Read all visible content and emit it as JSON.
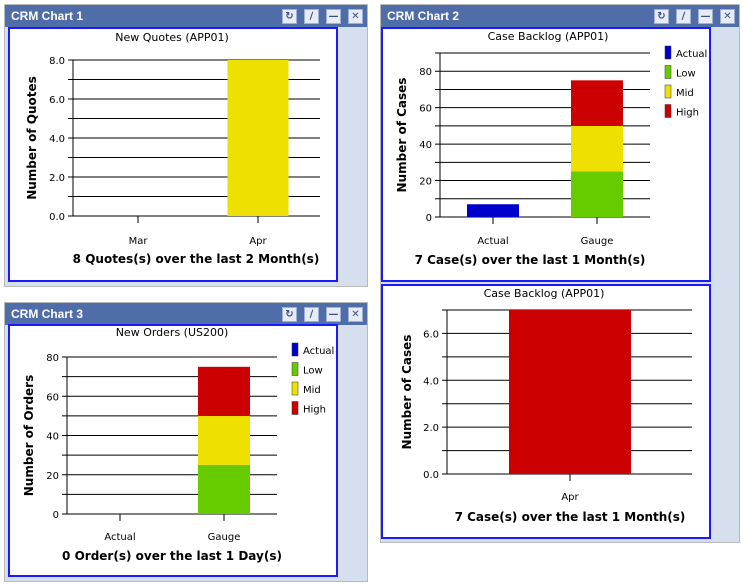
{
  "panels": [
    {
      "title": "CRM Chart 1"
    },
    {
      "title": "CRM Chart 2"
    },
    {
      "title": "CRM Chart 3"
    }
  ],
  "window_buttons": {
    "refresh": "refresh-icon",
    "edit": "edit-icon",
    "minimize": "minimize-icon",
    "close": "close-icon"
  },
  "colors": {
    "Actual": "#0000cc",
    "Low": "#66cc00",
    "Mid": "#eee000",
    "High": "#cc0000",
    "quotes_bar": "#eee000",
    "frame": "#1a1aff",
    "titlebar": "#4f6ea9"
  },
  "chart_data": [
    {
      "type": "bar",
      "title": "New Quotes (APP01)",
      "ylabel": "Number of Quotes",
      "subtitle": "8 Quotes(s) over the last 2 Month(s)",
      "categories": [
        "Mar",
        "Apr"
      ],
      "values": [
        0,
        8
      ],
      "ylim": [
        0,
        8
      ],
      "yticks": [
        "0.0",
        "2.0",
        "4.0",
        "6.0",
        "8.0"
      ],
      "grid": true
    },
    {
      "type": "bar",
      "stacked": true,
      "title": "Case Backlog (APP01)",
      "ylabel": "Number of Cases",
      "subtitle": "7 Case(s) over the last 1 Month(s)",
      "categories": [
        "Actual",
        "Gauge"
      ],
      "series": [
        {
          "name": "Actual",
          "values": [
            7,
            0
          ]
        },
        {
          "name": "Low",
          "values": [
            0,
            25
          ]
        },
        {
          "name": "Mid",
          "values": [
            0,
            25
          ]
        },
        {
          "name": "High",
          "values": [
            0,
            25
          ]
        }
      ],
      "legend": [
        "Actual",
        "Low",
        "Mid",
        "High"
      ],
      "legend_position": "right",
      "ylim": [
        0,
        90
      ],
      "yticks": [
        "0",
        "20",
        "40",
        "60",
        "80"
      ],
      "grid": true
    },
    {
      "type": "bar",
      "stacked": true,
      "title": "New Orders (US200)",
      "ylabel": "Number of Orders",
      "subtitle": "0 Order(s) over the last 1 Day(s)",
      "categories": [
        "Actual",
        "Gauge"
      ],
      "series": [
        {
          "name": "Actual",
          "values": [
            0,
            0
          ]
        },
        {
          "name": "Low",
          "values": [
            0,
            25
          ]
        },
        {
          "name": "Mid",
          "values": [
            0,
            25
          ]
        },
        {
          "name": "High",
          "values": [
            0,
            25
          ]
        }
      ],
      "legend": [
        "Actual",
        "Low",
        "Mid",
        "High"
      ],
      "legend_position": "right",
      "ylim": [
        0,
        80
      ],
      "yticks": [
        "0",
        "20",
        "40",
        "60",
        "80"
      ],
      "grid": true
    },
    {
      "type": "bar",
      "title": "Case Backlog (APP01)",
      "ylabel": "Number of Cases",
      "subtitle": "7 Case(s) over the last 1 Month(s)",
      "categories": [
        "Apr"
      ],
      "values": [
        7
      ],
      "ylim": [
        0,
        7
      ],
      "yticks": [
        "0.0",
        "2.0",
        "4.0",
        "6.0"
      ],
      "grid": true
    }
  ]
}
